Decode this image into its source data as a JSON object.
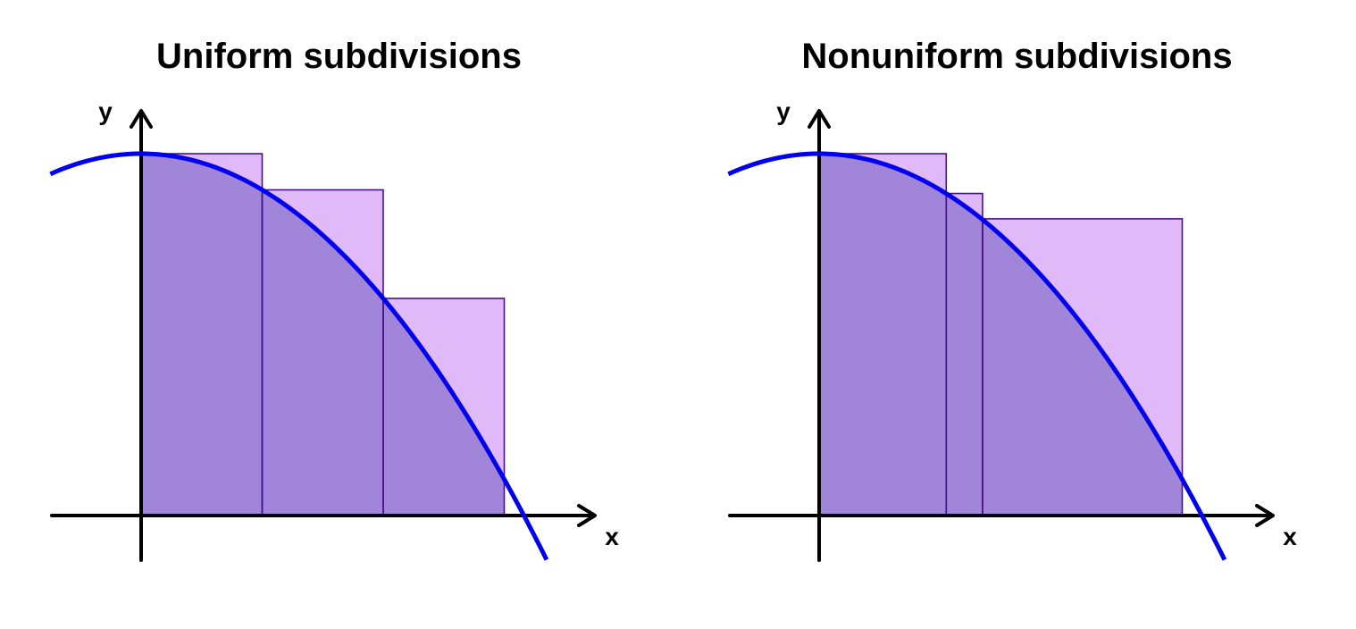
{
  "panels": [
    {
      "title": "Uniform subdivisions",
      "xlabel": "x",
      "ylabel": "y",
      "partition": [
        0,
        1,
        2,
        3
      ],
      "rect_heights": [
        1.0,
        0.9,
        0.6
      ]
    },
    {
      "title": "Nonuniform subdivisions",
      "xlabel": "x",
      "ylabel": "y",
      "partition": [
        0,
        1.05,
        1.35,
        3.0
      ],
      "rect_heights": [
        1.0,
        0.89,
        0.82
      ]
    }
  ],
  "curve": {
    "formula": "y = 1 - 0.1 x^2",
    "x_range": [
      -0.75,
      3.35
    ]
  },
  "colors": {
    "curve": "#0000ee",
    "rect_fill": "#e0b9f8",
    "overlap_fill": "#a085d8",
    "rect_stroke": "#4b0f8c",
    "axis": "#000000"
  }
}
